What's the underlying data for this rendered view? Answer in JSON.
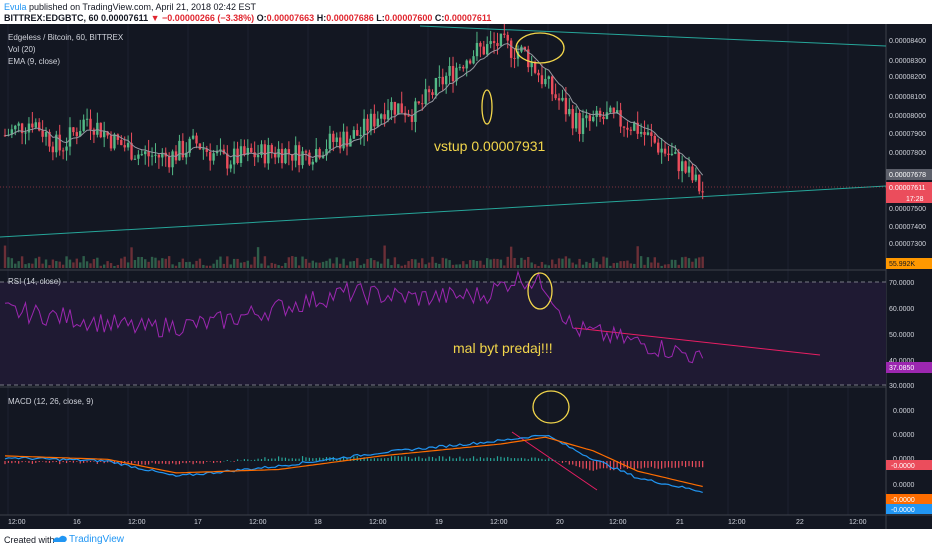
{
  "header": {
    "author": "Evula",
    "published": "published on TradingView.com, April 21, 2018 02:42 EST",
    "symbol": "BITTREX:EDGBTC, 60",
    "last_price": "0.00007611",
    "change": "−0.00000266 (−3.38%)",
    "ohlc": [
      {
        "key": "O:",
        "value": "0.00007663"
      },
      {
        "key": "H:",
        "value": "0.00007686"
      },
      {
        "key": "L:",
        "value": "0.00007600"
      },
      {
        "key": "C:",
        "value": "0.00007611"
      }
    ]
  },
  "legend": {
    "title": "Edgeless / Bitcoin, 60, BITTREX",
    "vol": "Vol (20)",
    "ema": "EMA (9, close)",
    "rsi": "RSI (14, close)",
    "macd": "MACD (12, 26, close, 9)"
  },
  "annotations": {
    "entry": "vstup 0.00007931",
    "sell": "mal byt predaj!!!"
  },
  "price_axis": {
    "ticks": [
      "0.00008400",
      "0.00008300",
      "0.00008200",
      "0.00008100",
      "0.00008000",
      "0.00007900",
      "0.00007800",
      "0.00007500",
      "0.00007400",
      "0.00007300"
    ],
    "current_label": "0.00007611",
    "ema_label": "0.00007678",
    "countdown": "17:28",
    "volume_label": "55.992K"
  },
  "rsi_axis": {
    "ticks": [
      "70.0000",
      "60.0000",
      "50.0000",
      "40.0000",
      "30.0000"
    ],
    "current_label": "37.0850"
  },
  "macd_axis": {
    "ticks": [
      "0.0000",
      "0.0000",
      "0.0000",
      "0.0000"
    ],
    "labels": [
      "-0.0000",
      "-0.0000",
      "-0.0000"
    ]
  },
  "time_axis": [
    "12:00",
    "16",
    "12:00",
    "17",
    "12:00",
    "18",
    "12:00",
    "19",
    "12:00",
    "20",
    "12:00",
    "21",
    "12:00",
    "22",
    "12:00"
  ],
  "footer": {
    "created": "Created with",
    "brand": "TradingView"
  },
  "colors": {
    "background": "#131722",
    "bull": "#53b987",
    "bear": "#eb4d5c",
    "ema": "#9598a1",
    "rsi": "#9c27b0",
    "macd": "#2196f3",
    "signal": "#ff6d00",
    "highlight": "#f2d64b"
  },
  "chart_data": [
    {
      "type": "candlestick",
      "title": "Edgeless / Bitcoin, 60, BITTREX",
      "x_labels": [
        "12:00",
        "16",
        "12:00",
        "17",
        "12:00",
        "18",
        "12:00",
        "19",
        "12:00",
        "20",
        "12:00",
        "21",
        "12:00",
        "22",
        "12:00"
      ],
      "ylim": [
        7.22e-05,
        8.45e-05
      ],
      "close_path": [
        [
          0,
          7.9e-05
        ],
        [
          8,
          7.98e-05
        ],
        [
          16,
          7.83e-05
        ],
        [
          24,
          7.99e-05
        ],
        [
          32,
          7.87e-05
        ],
        [
          40,
          7.8e-05
        ],
        [
          48,
          7.79e-05
        ],
        [
          56,
          7.86e-05
        ],
        [
          64,
          7.77e-05
        ],
        [
          72,
          7.8e-05
        ],
        [
          80,
          7.82e-05
        ],
        [
          88,
          7.8e-05
        ],
        [
          96,
          7.87e-05
        ],
        [
          104,
          7.91e-05
        ],
        [
          112,
          8.06e-05
        ],
        [
          120,
          8.02e-05
        ],
        [
          128,
          8.18e-05
        ],
        [
          136,
          8.32e-05
        ],
        [
          144,
          8.37e-05
        ],
        [
          152,
          8.32e-05
        ],
        [
          160,
          8.12e-05
        ],
        [
          168,
          7.95e-05
        ],
        [
          176,
          7.99e-05
        ],
        [
          184,
          7.95e-05
        ],
        [
          192,
          7.83e-05
        ],
        [
          197,
          7.76e-05
        ],
        [
          204,
          7.61e-05
        ]
      ],
      "last": 7.611e-05,
      "ema_9": 7.678e-05,
      "volume_last": "55.992K",
      "entry_note": "vstup 0.00007931"
    },
    {
      "type": "line",
      "title": "RSI (14, close)",
      "ylim": [
        28,
        72
      ],
      "bands": [
        70,
        30
      ],
      "path": [
        [
          0,
          57
        ],
        [
          20,
          54
        ],
        [
          40,
          50
        ],
        [
          60,
          52
        ],
        [
          80,
          58
        ],
        [
          100,
          64
        ],
        [
          120,
          62
        ],
        [
          140,
          63
        ],
        [
          150,
          70
        ],
        [
          158,
          67
        ],
        [
          166,
          50
        ],
        [
          180,
          46
        ],
        [
          200,
          40
        ],
        [
          204,
          37.085
        ]
      ],
      "last": 37.085
    },
    {
      "type": "line",
      "title": "MACD (12, 26, close, 9)",
      "series": [
        {
          "values": [
            [
              0,
              0.2
            ],
            [
              30,
              0.0
            ],
            [
              50,
              -0.9
            ],
            [
              80,
              -0.3
            ],
            [
              110,
              0.5
            ],
            [
              145,
              1.2
            ],
            [
              158,
              1.55
            ],
            [
              170,
              0.3
            ],
            [
              185,
              -1.0
            ],
            [
              204,
              -1.8
            ]
          ]
        },
        {
          "values": [
            [
              0,
              0.3
            ],
            [
              30,
              0.1
            ],
            [
              50,
              -0.7
            ],
            [
              80,
              -0.5
            ],
            [
              110,
              0.3
            ],
            [
              145,
              1.0
            ],
            [
              158,
              1.4
            ],
            [
              172,
              0.6
            ],
            [
              185,
              -0.6
            ],
            [
              204,
              -1.5
            ]
          ]
        }
      ],
      "last": "-0.0000"
    }
  ]
}
